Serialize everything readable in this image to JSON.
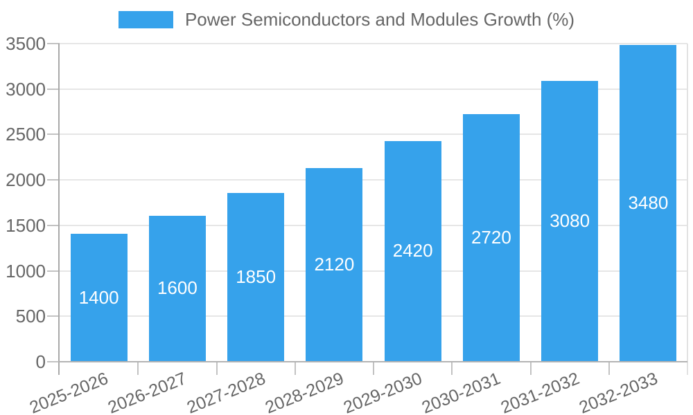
{
  "legend": {
    "label": "Power Semiconductors and Modules Growth (%)"
  },
  "chart_data": {
    "type": "bar",
    "title": "Power Semiconductors and Modules Growth (%)",
    "categories": [
      "2025-2026",
      "2026-2027",
      "2027-2028",
      "2028-2029",
      "2029-2030",
      "2030-2031",
      "2031-2032",
      "2032-2033"
    ],
    "series": [
      {
        "name": "Power Semiconductors and Modules Growth (%)",
        "values": [
          1400,
          1600,
          1850,
          2120,
          2420,
          2720,
          3080,
          3480
        ]
      }
    ],
    "value_labels": [
      "1400",
      "1600",
      "1850",
      "2120",
      "2420",
      "2720",
      "3080",
      "3480"
    ],
    "xlabel": "",
    "ylabel": "",
    "ylim": [
      0,
      3500
    ],
    "yticks": [
      0,
      500,
      1000,
      1500,
      2000,
      2500,
      3000,
      3500
    ],
    "grid": true,
    "legend_position": "top",
    "x_label_rotation_deg": -22,
    "colors": {
      "bar": "#36A2EB",
      "bar_label": "#FFFFFF",
      "axis_text": "#666666",
      "legend_text": "#666666",
      "grid_line": "#E6E6E6",
      "axis_line": "#A9A9A9",
      "baseline": "#B3B3B3",
      "tick": "#C2C2C2",
      "right_border": "#E2E2E2",
      "background": "#FFFFFF"
    }
  }
}
